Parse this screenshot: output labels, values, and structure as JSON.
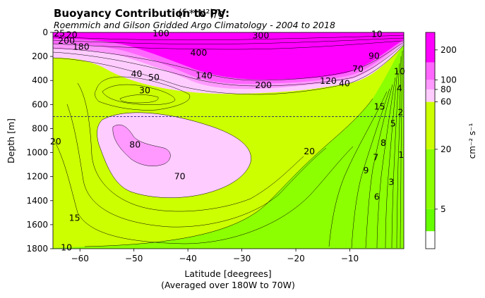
{
  "chart_data": {
    "type": "contour",
    "title": "Buoyancy Contribution to PV:",
    "title_formula": "(f * N²)/g",
    "subtitle": "Roemmich and Gilson Gridded Argo Climatology - 2004 to 2018",
    "xlabel": "Latitude [deegrees]",
    "xlabel_note": "(Averaged over 180W to 70W)",
    "ylabel": "Depth [m]",
    "xlim": [
      -65,
      0
    ],
    "ylim": [
      1800,
      0
    ],
    "y_inverted": true,
    "xticks": [
      -60,
      -50,
      -40,
      -30,
      -20,
      -10
    ],
    "xtick_labels": [
      "−60",
      "−50",
      "−40",
      "−30",
      "−20",
      "−10"
    ],
    "yticks": [
      0,
      200,
      400,
      600,
      800,
      1000,
      1200,
      1400,
      1600,
      1800
    ],
    "reference_line_depth": 700,
    "colorbar": {
      "label": "cm⁻² s⁻¹",
      "scale": "log",
      "tick_values": [
        5,
        20,
        60,
        80,
        100,
        200
      ],
      "tick_labels": [
        "5",
        "20",
        "60",
        "80",
        "100",
        "200"
      ],
      "levels": [
        2,
        3,
        5,
        20,
        60,
        80,
        100,
        150,
        300
      ],
      "colors": [
        "#ffffff",
        "#66ff00",
        "#8cff00",
        "#ccff00",
        "#ffccff",
        "#ff99ff",
        "#ff66ff",
        "#ff00ff"
      ]
    },
    "contour_labels": [
      {
        "text": "25",
        "lat": -63.8,
        "depth": 10
      },
      {
        "text": "20",
        "lat": -61.5,
        "depth": 20
      },
      {
        "text": "200",
        "lat": -62.5,
        "depth": 70
      },
      {
        "text": "180",
        "lat": -59.8,
        "depth": 120
      },
      {
        "text": "100",
        "lat": -45.0,
        "depth": 10
      },
      {
        "text": "300",
        "lat": -26.5,
        "depth": 25
      },
      {
        "text": "10",
        "lat": -5.0,
        "depth": 15
      },
      {
        "text": "400",
        "lat": -38.0,
        "depth": 170
      },
      {
        "text": "90",
        "lat": -5.5,
        "depth": 195
      },
      {
        "text": "70",
        "lat": -8.5,
        "depth": 305
      },
      {
        "text": "10",
        "lat": -0.8,
        "depth": 325
      },
      {
        "text": "40",
        "lat": -49.5,
        "depth": 345
      },
      {
        "text": "50",
        "lat": -46.3,
        "depth": 375
      },
      {
        "text": "140",
        "lat": -37.0,
        "depth": 360
      },
      {
        "text": "120",
        "lat": -14.0,
        "depth": 405
      },
      {
        "text": "200",
        "lat": -26.0,
        "depth": 440
      },
      {
        "text": "40",
        "lat": -11.0,
        "depth": 425
      },
      {
        "text": "4",
        "lat": -0.8,
        "depth": 465
      },
      {
        "text": "30",
        "lat": -48.0,
        "depth": 485
      },
      {
        "text": "15",
        "lat": -4.5,
        "depth": 620
      },
      {
        "text": "2",
        "lat": -0.6,
        "depth": 665
      },
      {
        "text": "5",
        "lat": -2.0,
        "depth": 760
      },
      {
        "text": "8",
        "lat": -3.8,
        "depth": 920
      },
      {
        "text": "20",
        "lat": -64.5,
        "depth": 910
      },
      {
        "text": "80",
        "lat": -49.8,
        "depth": 935
      },
      {
        "text": "20",
        "lat": -17.5,
        "depth": 990
      },
      {
        "text": "7",
        "lat": -5.2,
        "depth": 1040
      },
      {
        "text": "1",
        "lat": -0.5,
        "depth": 1020
      },
      {
        "text": "9",
        "lat": -7.0,
        "depth": 1150
      },
      {
        "text": "70",
        "lat": -41.5,
        "depth": 1200
      },
      {
        "text": "3",
        "lat": -2.3,
        "depth": 1245
      },
      {
        "text": "6",
        "lat": -5.0,
        "depth": 1370
      },
      {
        "text": "15",
        "lat": -61.0,
        "depth": 1545
      },
      {
        "text": "10",
        "lat": -62.5,
        "depth": 1790
      }
    ]
  }
}
